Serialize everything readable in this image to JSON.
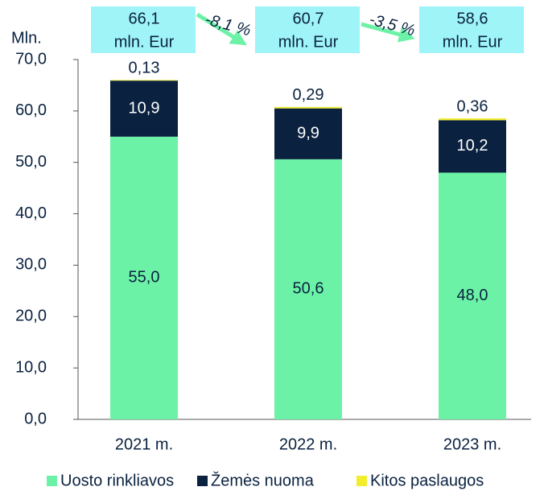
{
  "chart_data": {
    "type": "stacked_bar",
    "y_label": "Mln.",
    "categories": [
      "2021 m.",
      "2022 m.",
      "2023 m."
    ],
    "series": [
      {
        "name": "Uosto rinkliavos",
        "color": "#6cf2a6",
        "values": [
          55.0,
          50.6,
          48.0
        ],
        "value_labels": [
          "55,0",
          "50,6",
          "48,0"
        ],
        "label_color": "#0a2240"
      },
      {
        "name": "Žemės nuoma",
        "color": "#0a2240",
        "values": [
          10.9,
          9.9,
          10.2
        ],
        "value_labels": [
          "10,9",
          "9,9",
          "10,2"
        ],
        "label_color": "#ffffff"
      },
      {
        "name": "Kitos paslaugos",
        "color": "#f2ee2e",
        "values": [
          0.13,
          0.29,
          0.36
        ],
        "value_labels": [
          "0,13",
          "0,29",
          "0,36"
        ],
        "label_color": "#0a2240"
      }
    ],
    "totals": [
      {
        "value": 66.1,
        "label": "66,1"
      },
      {
        "value": 60.7,
        "label": "60,7"
      },
      {
        "value": 58.6,
        "label": "58,6"
      }
    ],
    "total_unit": "mln. Eur",
    "changes": [
      {
        "value": -8.1,
        "label": "-8,1 %"
      },
      {
        "value": -3.5,
        "label": "-3,5 %"
      }
    ],
    "ylim": [
      0,
      70
    ],
    "yticks": [
      {
        "value": 0,
        "label": "0,0"
      },
      {
        "value": 10,
        "label": "10,0"
      },
      {
        "value": 20,
        "label": "20,0"
      },
      {
        "value": 30,
        "label": "30,0"
      },
      {
        "value": 40,
        "label": "40,0"
      },
      {
        "value": 50,
        "label": "50,0"
      },
      {
        "value": 60,
        "label": "60,0"
      },
      {
        "value": 70,
        "label": "70,0"
      }
    ],
    "legend": "bottom"
  }
}
